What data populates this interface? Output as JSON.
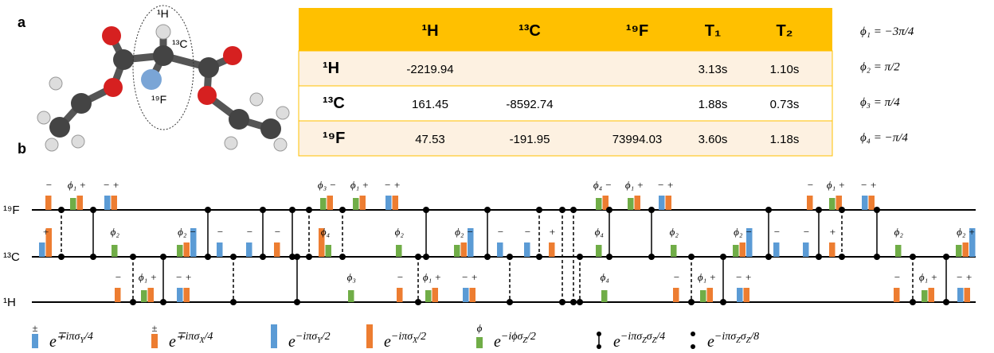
{
  "panels": {
    "a": "a",
    "b": "b"
  },
  "molecule": {
    "labels": [
      "¹H",
      "¹³C",
      "¹⁹F"
    ]
  },
  "table": {
    "header": [
      "¹H",
      "¹³C",
      "¹⁹F",
      "T₁",
      "T₂"
    ],
    "rows": [
      [
        "¹H",
        "-2219.94",
        null,
        null,
        "3.13s",
        "1.10s"
      ],
      [
        "¹³C",
        "161.45",
        "-8592.74",
        null,
        "1.88s",
        "0.73s"
      ],
      [
        "¹⁹F",
        "47.53",
        "-191.95",
        "73994.03",
        "3.60s",
        "1.18s"
      ]
    ]
  },
  "phases": [
    "ϕ₁ = −3π/4",
    "ϕ₂ = π/2",
    "ϕ₃ = π/4",
    "ϕ₄ = −π/4"
  ],
  "sequence": {
    "rows": [
      {
        "name": "¹⁹F",
        "labels": [
          "−",
          "ϕ₁ +",
          "− +",
          "ϕ₃ −",
          "ϕ₁ +",
          "− +",
          "ϕ₄ −",
          "ϕ₁ +",
          "− +",
          "−",
          "ϕ₁ +",
          "− +"
        ]
      },
      {
        "name": "¹³C",
        "labels": [
          "+",
          "ϕ₂",
          "ϕ₂ −",
          "−",
          "−",
          "−",
          "ϕ₄",
          "ϕ₂",
          "ϕ₂ −",
          "−",
          "−",
          "+",
          "ϕ₄",
          "ϕ₂",
          "ϕ₂ −",
          "−",
          "−",
          "+",
          "ϕ₂",
          "ϕ₂ +"
        ]
      },
      {
        "name": "¹H",
        "labels": [
          "−",
          "ϕ₁ +",
          "− +",
          "ϕ₃",
          "−",
          "ϕ₁ +",
          "− +",
          "ϕ₄",
          "−",
          "ϕ₁ +",
          "− +",
          "−",
          "ϕ₁ +",
          "− +"
        ]
      }
    ]
  },
  "legend": [
    {
      "symbol": "±",
      "base": "e",
      "exponent": [
        "∓iπσ",
        "Y",
        "/4"
      ]
    },
    {
      "symbol": "±",
      "base": "e",
      "exponent": [
        "∓iπσ",
        "X",
        "/4"
      ]
    },
    {
      "base": "e",
      "exponent": [
        "−iπσ",
        "Y",
        "/2"
      ]
    },
    {
      "base": "e",
      "exponent": [
        "−iπσ",
        "X",
        "/2"
      ]
    },
    {
      "symbol": "ϕ",
      "base": "e",
      "exponent": [
        "−iϕσ",
        "Z",
        "/2"
      ]
    },
    {
      "base": "e",
      "exponent": [
        "−iπσ",
        "Z",
        "σ",
        "Z",
        "/4"
      ]
    },
    {
      "base": "e",
      "exponent": [
        "−iπσ",
        "Z",
        "σ",
        "Z",
        "/8"
      ]
    }
  ]
}
